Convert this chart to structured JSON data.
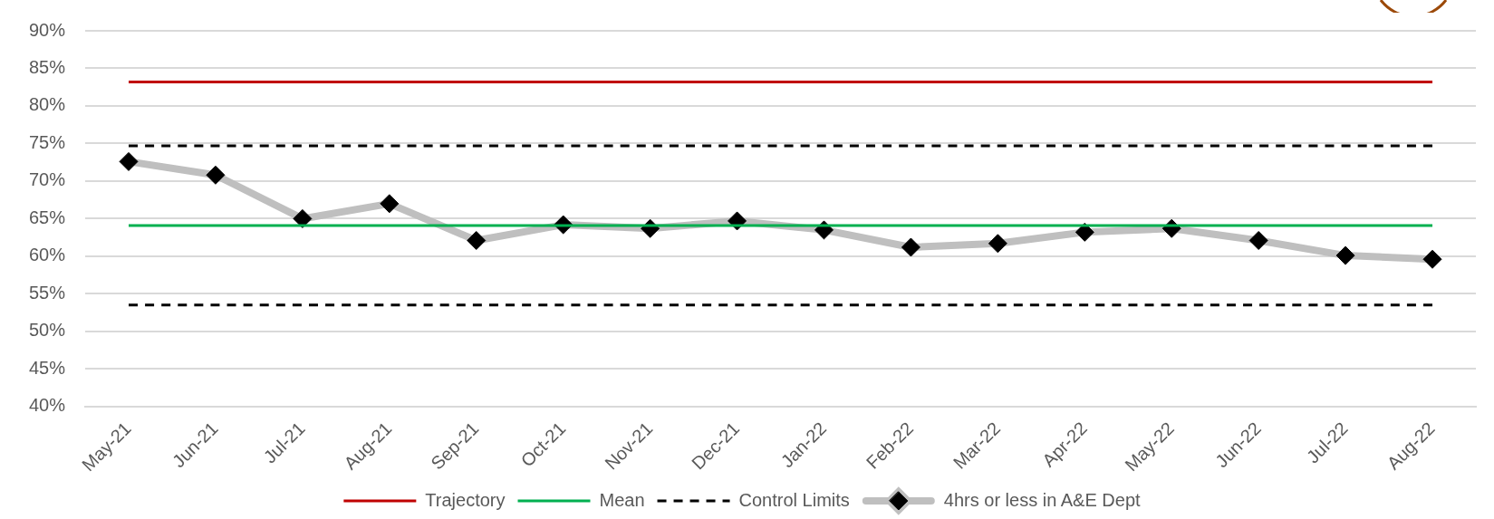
{
  "chart_data": {
    "type": "line",
    "categories": [
      "May-21",
      "Jun-21",
      "Jul-21",
      "Aug-21",
      "Sep-21",
      "Oct-21",
      "Nov-21",
      "Dec-21",
      "Jan-22",
      "Feb-22",
      "Mar-22",
      "Apr-22",
      "May-22",
      "Jun-22",
      "Jul-22",
      "Aug-22"
    ],
    "series": [
      {
        "name": "Trajectory",
        "color": "#c00000",
        "marker": "none",
        "values": [
          83.2,
          83.2,
          83.2,
          83.2,
          83.2,
          83.2,
          83.2,
          83.2,
          83.2,
          83.2,
          83.2,
          83.2,
          83.2,
          83.2,
          83.2,
          83.2
        ]
      },
      {
        "name": "Mean",
        "color": "#00b050",
        "marker": "none",
        "values": [
          64.1,
          64.1,
          64.1,
          64.1,
          64.1,
          64.1,
          64.1,
          64.1,
          64.1,
          64.1,
          64.1,
          64.1,
          64.1,
          64.1,
          64.1,
          64.1
        ]
      },
      {
        "name": "Control Limits",
        "color": "#000000",
        "marker": "none",
        "line_style": "dashed",
        "values": [
          53.5,
          53.5,
          53.5,
          53.5,
          53.5,
          53.5,
          53.5,
          53.5,
          53.5,
          53.5,
          53.5,
          53.5,
          53.5,
          53.5,
          53.5,
          53.5
        ]
      },
      {
        "color": "#000000",
        "marker": "none",
        "line_style": "dashed",
        "values": [
          74.7,
          74.7,
          74.7,
          74.7,
          74.7,
          74.7,
          74.7,
          74.7,
          74.7,
          74.7,
          74.7,
          74.7,
          74.7,
          74.7,
          74.7,
          74.7
        ]
      },
      {
        "name": "4hrs or less in A&E Dept",
        "color": "#bfbfbf",
        "marker": "diamond",
        "values": [
          72.6,
          70.8,
          65.0,
          67.0,
          62.1,
          64.2,
          63.7,
          64.7,
          63.5,
          61.2,
          61.7,
          63.2,
          63.7,
          62.1,
          60.1,
          59.6
        ]
      }
    ],
    "ylim": [
      40,
      90
    ],
    "yticks": [
      {
        "value": 40,
        "label": "40%"
      },
      {
        "value": 45,
        "label": "45%"
      },
      {
        "value": 50,
        "label": "50%"
      },
      {
        "value": 55,
        "label": "55%"
      },
      {
        "value": 60,
        "label": "60%"
      },
      {
        "value": 65,
        "label": "65%"
      },
      {
        "value": 70,
        "label": "70%"
      },
      {
        "value": 75,
        "label": "75%"
      },
      {
        "value": 80,
        "label": "80%"
      },
      {
        "value": 85,
        "label": "85%"
      },
      {
        "value": 90,
        "label": "90%"
      }
    ],
    "grid": "y",
    "legend": "bottom"
  }
}
